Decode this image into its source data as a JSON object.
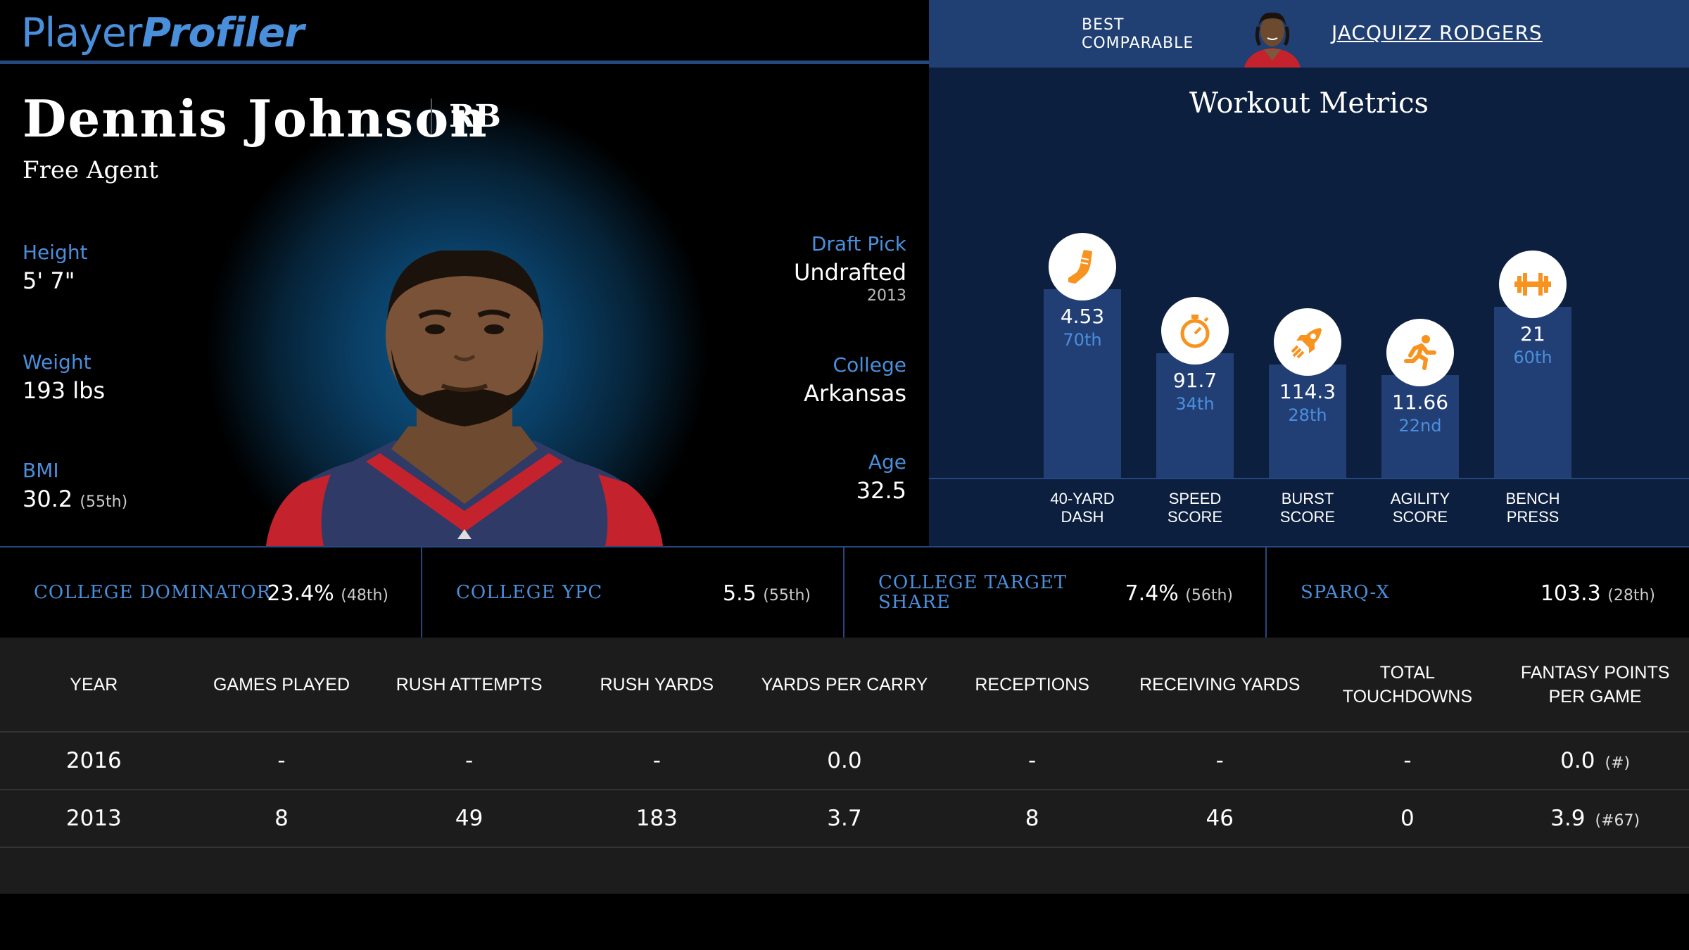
{
  "header": {
    "logo_part1": "Player",
    "logo_part2": "Profiler",
    "best_comparable_label_line1": "BEST",
    "best_comparable_label_line2": "COMPARABLE",
    "best_comparable_name": "JACQUIZZ RODGERS"
  },
  "player": {
    "name": "Dennis Johnson",
    "position": "RB",
    "team": "Free Agent",
    "height_label": "Height",
    "height_value": "5' 7\"",
    "weight_label": "Weight",
    "weight_value": "193 lbs",
    "bmi_label": "BMI",
    "bmi_value": "30.2",
    "bmi_rank": "(55th)",
    "draft_label": "Draft Pick",
    "draft_value": "Undrafted",
    "draft_year": "2013",
    "college_label": "College",
    "college_value": "Arkansas",
    "age_label": "Age",
    "age_value": "32.5"
  },
  "workout": {
    "title": "Workout Metrics",
    "icon_color": "#f7931e",
    "metrics": [
      {
        "label_line1": "40-YARD",
        "label_line2": "DASH",
        "value": "4.53",
        "percentile": "70th",
        "percentile_value": 70,
        "icon": "shoe-icon"
      },
      {
        "label_line1": "SPEED",
        "label_line2": "SCORE",
        "value": "91.7",
        "percentile": "34th",
        "percentile_value": 34,
        "icon": "stopwatch-icon"
      },
      {
        "label_line1": "BURST",
        "label_line2": "SCORE",
        "value": "114.3",
        "percentile": "28th",
        "percentile_value": 28,
        "icon": "rocket-icon"
      },
      {
        "label_line1": "AGILITY",
        "label_line2": "SCORE",
        "value": "11.66",
        "percentile": "22nd",
        "percentile_value": 22,
        "icon": "runner-icon"
      },
      {
        "label_line1": "BENCH",
        "label_line2": "PRESS",
        "value": "21",
        "percentile": "60th",
        "percentile_value": 60,
        "icon": "barbell-icon"
      }
    ]
  },
  "college_metrics": [
    {
      "label_line1": "COLLEGE DOMINATOR",
      "label_line2": "",
      "value": "23.4%",
      "rank": "(48th)"
    },
    {
      "label_line1": "COLLEGE YPC",
      "label_line2": "",
      "value": "5.5",
      "rank": "(55th)"
    },
    {
      "label_line1": "COLLEGE TARGET",
      "label_line2": "SHARE",
      "value": "7.4%",
      "rank": "(56th)"
    },
    {
      "label_line1": "SPARQ-X",
      "label_line2": "",
      "value": "103.3",
      "rank": "(28th)"
    }
  ],
  "stats_table": {
    "headers": [
      "YEAR",
      "GAMES PLAYED",
      "RUSH ATTEMPTS",
      "RUSH YARDS",
      "YARDS PER CARRY",
      "RECEPTIONS",
      "RECEIVING YARDS",
      "TOTAL TOUCHDOWNS",
      "FANTASY POINTS PER GAME"
    ],
    "rows": [
      {
        "cells": [
          "2016",
          "-",
          "-",
          "-",
          "0.0",
          "-",
          "-",
          "-",
          "0.0"
        ],
        "fp_rank": "(#)"
      },
      {
        "cells": [
          "2013",
          "8",
          "49",
          "183",
          "3.7",
          "8",
          "46",
          "0",
          "3.9"
        ],
        "fp_rank": "(#67)"
      }
    ]
  }
}
